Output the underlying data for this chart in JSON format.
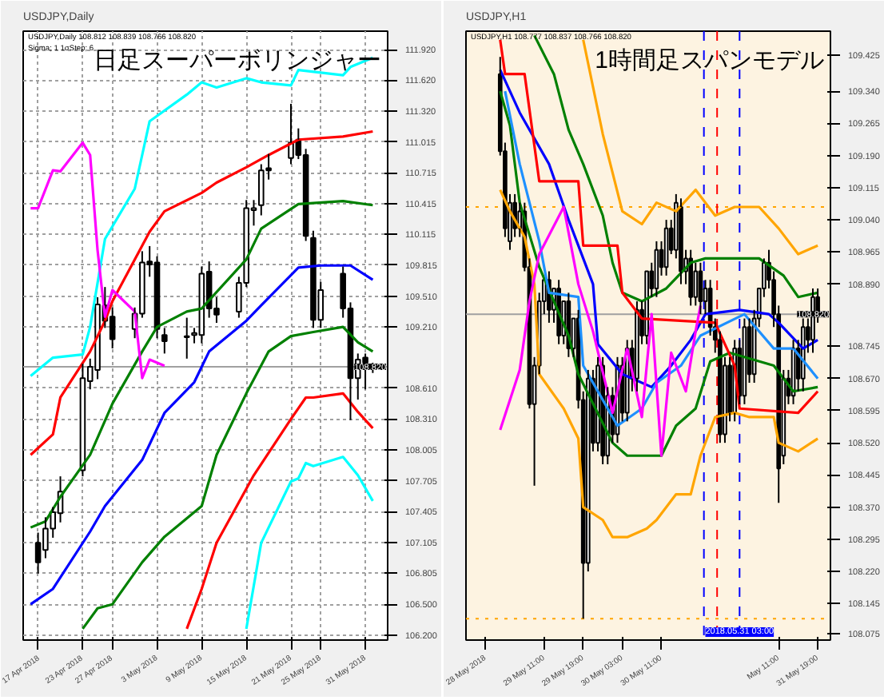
{
  "chart_data": [
    {
      "type": "candlestick",
      "title": "日足スーパーボリンジャー",
      "subtitle": "USDJPY,Daily 108.812 108.839 108.766 108.820",
      "annotations": [
        "USDJPY,Daily",
        "Sigma; 1 1σStep; 6"
      ],
      "x": [
        "2018-04-17",
        "2018-04-18",
        "2018-04-19",
        "2018-04-20",
        "2018-04-23",
        "2018-04-24",
        "2018-04-25",
        "2018-04-26",
        "2018-04-27",
        "2018-04-30",
        "2018-05-01",
        "2018-05-02",
        "2018-05-03",
        "2018-05-04",
        "2018-05-07",
        "2018-05-08",
        "2018-05-09",
        "2018-05-10",
        "2018-05-11",
        "2018-05-14",
        "2018-05-15",
        "2018-05-16",
        "2018-05-17",
        "2018-05-18",
        "2018-05-21",
        "2018-05-22",
        "2018-05-23",
        "2018-05-24",
        "2018-05-25",
        "2018-05-28",
        "2018-05-29",
        "2018-05-30",
        "2018-05-31",
        "2018-06-01"
      ],
      "ohlc": [
        [
          107.1,
          107.2,
          106.8,
          106.91
        ],
        [
          107.03,
          107.35,
          106.95,
          107.24
        ],
        [
          107.24,
          107.45,
          107.15,
          107.4
        ],
        [
          107.39,
          107.75,
          107.3,
          107.6
        ],
        [
          107.81,
          108.85,
          107.75,
          108.71
        ],
        [
          108.68,
          108.9,
          108.6,
          108.82
        ],
        [
          108.79,
          109.5,
          108.7,
          109.43
        ],
        [
          109.42,
          109.6,
          109.2,
          109.27
        ],
        [
          109.31,
          109.4,
          109.0,
          109.09
        ],
        [
          109.19,
          109.4,
          109.1,
          109.34
        ],
        [
          109.34,
          109.95,
          109.3,
          109.84
        ],
        [
          109.85,
          110.0,
          109.7,
          109.82
        ],
        [
          109.84,
          109.9,
          109.1,
          109.19
        ],
        [
          109.13,
          109.2,
          108.95,
          109.07
        ],
        [
          109.12,
          109.3,
          108.9,
          109.11
        ],
        [
          109.13,
          109.2,
          109.05,
          109.15
        ],
        [
          109.13,
          109.8,
          109.05,
          109.73
        ],
        [
          109.75,
          109.85,
          109.3,
          109.39
        ],
        [
          109.39,
          109.5,
          109.25,
          109.33
        ],
        [
          109.36,
          109.7,
          109.3,
          109.64
        ],
        [
          109.64,
          110.45,
          109.6,
          110.37
        ],
        [
          110.35,
          110.45,
          110.2,
          110.37
        ],
        [
          110.4,
          110.8,
          110.3,
          110.74
        ],
        [
          110.76,
          110.9,
          110.65,
          110.74
        ],
        [
          110.86,
          111.39,
          110.8,
          111.01
        ],
        [
          111.04,
          111.15,
          110.85,
          110.89
        ],
        [
          110.89,
          110.95,
          110.05,
          110.1
        ],
        [
          110.08,
          110.15,
          109.2,
          109.28
        ],
        [
          109.28,
          109.65,
          109.2,
          109.57
        ],
        [
          109.73,
          109.8,
          109.3,
          109.39
        ],
        [
          109.39,
          109.45,
          108.3,
          108.71
        ],
        [
          108.71,
          108.95,
          108.5,
          108.89
        ],
        [
          108.91,
          108.95,
          108.6,
          108.86
        ],
        [
          108.83,
          108.86,
          108.76,
          108.83
        ]
      ],
      "series": [
        {
          "type": "line",
          "color": "#00ffff",
          "x": [
            "2018-04-16",
            "2018-04-19",
            "2018-04-23",
            "2018-04-24",
            "2018-04-26",
            "2018-04-30",
            "2018-05-02",
            "2018-05-07",
            "2018-05-09",
            "2018-05-11",
            "2018-05-15",
            "2018-05-17",
            "2018-05-21",
            "2018-05-22",
            "2018-05-28",
            "2018-05-29",
            "2018-06-01"
          ],
          "values": [
            108.73,
            108.91,
            108.94,
            109.21,
            110.07,
            110.56,
            111.22,
            111.48,
            111.6,
            111.55,
            111.64,
            111.6,
            111.57,
            111.72,
            111.67,
            111.75,
            111.84
          ]
        },
        {
          "type": "line",
          "color": "#ff0000",
          "x": [
            "2018-04-16",
            "2018-04-19",
            "2018-04-20",
            "2018-04-24",
            "2018-04-26",
            "2018-04-27",
            "2018-05-02",
            "2018-05-04",
            "2018-05-09",
            "2018-05-11",
            "2018-05-15",
            "2018-05-18",
            "2018-05-22",
            "2018-05-28",
            "2018-06-01"
          ],
          "values": [
            107.96,
            108.16,
            108.52,
            108.97,
            109.27,
            109.46,
            110.14,
            110.34,
            110.52,
            110.62,
            110.77,
            110.89,
            111.04,
            111.07,
            111.12
          ]
        },
        {
          "type": "line",
          "color": "#008000",
          "x": [
            "2018-04-16",
            "2018-04-18",
            "2018-04-20",
            "2018-04-24",
            "2018-04-27",
            "2018-05-01",
            "2018-05-03",
            "2018-05-07",
            "2018-05-09",
            "2018-05-15",
            "2018-05-17",
            "2018-05-22",
            "2018-05-28",
            "2018-06-01"
          ],
          "values": [
            107.25,
            107.31,
            107.55,
            107.96,
            108.46,
            108.97,
            109.21,
            109.36,
            109.39,
            109.87,
            110.17,
            110.41,
            110.44,
            110.4
          ]
        },
        {
          "type": "line",
          "color": "#0000ff",
          "x": [
            "2018-04-16",
            "2018-04-19",
            "2018-04-24",
            "2018-04-26",
            "2018-05-01",
            "2018-05-04",
            "2018-05-08",
            "2018-05-10",
            "2018-05-15",
            "2018-05-17",
            "2018-05-22",
            "2018-05-25",
            "2018-05-29",
            "2018-06-01"
          ],
          "values": [
            106.5,
            106.65,
            107.21,
            107.46,
            107.91,
            108.37,
            108.67,
            108.97,
            109.27,
            109.42,
            109.79,
            109.81,
            109.81,
            109.67
          ]
        },
        {
          "type": "line",
          "color": "#008000",
          "x": [
            "2018-04-23",
            "2018-04-25",
            "2018-04-27",
            "2018-05-01",
            "2018-05-04",
            "2018-05-09",
            "2018-05-11",
            "2018-05-15",
            "2018-05-18",
            "2018-05-21",
            "2018-05-24",
            "2018-05-28",
            "2018-05-30",
            "2018-06-01"
          ],
          "values": [
            106.26,
            106.46,
            106.5,
            106.91,
            107.16,
            107.46,
            107.96,
            108.56,
            108.97,
            109.12,
            109.16,
            109.21,
            109.06,
            108.97
          ]
        },
        {
          "type": "line",
          "color": "#ff0000",
          "x": [
            "2018-05-07",
            "2018-05-09",
            "2018-05-11",
            "2018-05-16",
            "2018-05-21",
            "2018-05-23",
            "2018-05-24",
            "2018-05-28",
            "2018-05-30",
            "2018-06-01"
          ],
          "values": [
            106.26,
            106.65,
            107.1,
            107.76,
            108.31,
            108.52,
            108.52,
            108.56,
            108.38,
            108.22
          ]
        },
        {
          "type": "line",
          "color": "#00ffff",
          "x": [
            "2018-05-15",
            "2018-05-17",
            "2018-05-21",
            "2018-05-22",
            "2018-05-23",
            "2018-05-24",
            "2018-05-28",
            "2018-05-30",
            "2018-06-01"
          ],
          "values": [
            106.26,
            107.1,
            107.7,
            107.73,
            107.88,
            107.85,
            107.94,
            107.76,
            107.51
          ]
        },
        {
          "type": "line",
          "color": "#ff00ff",
          "x": [
            "2018-04-16",
            "2018-04-17",
            "2018-04-19",
            "2018-04-20",
            "2018-04-23",
            "2018-04-24",
            "2018-04-25",
            "2018-04-26",
            "2018-04-27",
            "2018-04-30",
            "2018-05-01",
            "2018-05-02",
            "2018-05-04"
          ],
          "values": [
            110.37,
            110.37,
            110.74,
            110.73,
            111.01,
            110.89,
            109.96,
            109.31,
            109.57,
            109.36,
            108.71,
            108.89,
            108.83
          ]
        }
      ],
      "xlim": [
        "2018-04-15",
        "2018-06-03"
      ],
      "ylim": [
        106.15,
        112.1
      ],
      "xticks": [
        {
          "value": "2018-04-17",
          "label": "17 Apr 2018"
        },
        {
          "value": "2018-04-23",
          "label": "23 Apr 2018"
        },
        {
          "value": "2018-04-27",
          "label": "27 Apr 2018"
        },
        {
          "value": "2018-05-03",
          "label": "3 May 2018"
        },
        {
          "value": "2018-05-09",
          "label": "9 May 2018"
        },
        {
          "value": "2018-05-15",
          "label": "15 May 2018"
        },
        {
          "value": "2018-05-21",
          "label": "21 May 2018"
        },
        {
          "value": "2018-05-25",
          "label": "25 May 2018"
        },
        {
          "value": "2018-05-31",
          "label": "31 May 2018"
        }
      ],
      "yticks": [
        {
          "value": 106.2,
          "label": "106.200"
        },
        {
          "value": 106.5,
          "label": "106.500"
        },
        {
          "value": 106.805,
          "label": "106.805"
        },
        {
          "value": 107.105,
          "label": "107.105"
        },
        {
          "value": 107.405,
          "label": "107.405"
        },
        {
          "value": 107.705,
          "label": "107.705"
        },
        {
          "value": 108.005,
          "label": "108.005"
        },
        {
          "value": 108.31,
          "label": "108.310"
        },
        {
          "value": 108.61,
          "label": "108.610"
        },
        {
          "value": 109.21,
          "label": "109.210"
        },
        {
          "value": 109.51,
          "label": "109.510"
        },
        {
          "value": 109.815,
          "label": "109.815"
        },
        {
          "value": 110.115,
          "label": "110.115"
        },
        {
          "value": 110.415,
          "label": "110.415"
        },
        {
          "value": 110.715,
          "label": "110.715"
        },
        {
          "value": 111.015,
          "label": "111.015"
        },
        {
          "value": 111.32,
          "label": "111.320"
        },
        {
          "value": 111.62,
          "label": "111.620"
        },
        {
          "value": 111.92,
          "label": "111.920"
        }
      ],
      "grid": true,
      "ref_lines": [
        {
          "axis": "y",
          "value": 108.82,
          "label": "108.820",
          "color": "#a0a0a0",
          "line_style": "solid"
        }
      ]
    },
    {
      "type": "candlestick",
      "title": "1時間足スパンモデル",
      "subtitle": "USDJPY,H1 108.777 108.837 108.766 108.820",
      "annotations": [
        "USDJPY,H1"
      ],
      "x": [
        "2018-05-29T02:00",
        "2018-05-29T03:00",
        "2018-05-29T04:00",
        "2018-05-29T05:00",
        "2018-05-29T06:00",
        "2018-05-29T07:00",
        "2018-05-29T08:00",
        "2018-05-29T09:00",
        "2018-05-29T10:00",
        "2018-05-29T11:00",
        "2018-05-29T12:00",
        "2018-05-29T13:00",
        "2018-05-29T14:00",
        "2018-05-29T15:00",
        "2018-05-29T16:00",
        "2018-05-29T17:00",
        "2018-05-29T18:00",
        "2018-05-29T19:00",
        "2018-05-29T20:00",
        "2018-05-29T21:00",
        "2018-05-29T22:00",
        "2018-05-29T23:00",
        "2018-05-30T00:00",
        "2018-05-30T01:00",
        "2018-05-30T02:00",
        "2018-05-30T03:00",
        "2018-05-30T04:00",
        "2018-05-30T05:00",
        "2018-05-30T06:00",
        "2018-05-30T07:00",
        "2018-05-30T08:00",
        "2018-05-30T09:00",
        "2018-05-30T10:00",
        "2018-05-30T11:00",
        "2018-05-30T12:00",
        "2018-05-30T13:00",
        "2018-05-30T14:00",
        "2018-05-30T15:00",
        "2018-05-30T16:00",
        "2018-05-30T17:00",
        "2018-05-30T18:00",
        "2018-05-30T19:00",
        "2018-05-30T20:00",
        "2018-05-30T21:00",
        "2018-05-30T22:00",
        "2018-05-30T23:00",
        "2018-05-31T00:00",
        "2018-05-31T01:00",
        "2018-05-31T02:00",
        "2018-05-31T03:00",
        "2018-05-31T04:00",
        "2018-05-31T05:00",
        "2018-05-31T06:00",
        "2018-05-31T07:00",
        "2018-05-31T08:00",
        "2018-05-31T09:00",
        "2018-05-31T10:00",
        "2018-05-31T11:00",
        "2018-05-31T12:00",
        "2018-05-31T13:00",
        "2018-05-31T14:00",
        "2018-05-31T15:00",
        "2018-05-31T16:00",
        "2018-05-31T17:00",
        "2018-05-31T18:00",
        "2018-05-31T19:00"
      ],
      "ohlc": [
        [
          109.38,
          109.42,
          109.19,
          109.2
        ],
        [
          109.2,
          109.22,
          109.0,
          109.02
        ],
        [
          108.99,
          109.1,
          108.97,
          109.08
        ],
        [
          109.08,
          109.1,
          109.0,
          109.02
        ],
        [
          109.02,
          109.08,
          109.0,
          109.06
        ],
        [
          109.06,
          109.08,
          108.92,
          108.93
        ],
        [
          108.93,
          108.95,
          108.6,
          108.61
        ],
        [
          108.61,
          108.72,
          108.42,
          108.7
        ],
        [
          108.7,
          108.87,
          108.68,
          108.85
        ],
        [
          108.85,
          108.9,
          108.82,
          108.9
        ],
        [
          108.9,
          108.92,
          108.8,
          108.83
        ],
        [
          108.83,
          108.88,
          108.8,
          108.88
        ],
        [
          108.88,
          108.9,
          108.75,
          108.77
        ],
        [
          108.77,
          108.85,
          108.75,
          108.85
        ],
        [
          108.85,
          108.87,
          108.72,
          108.74
        ],
        [
          108.74,
          108.81,
          108.72,
          108.81
        ],
        [
          108.81,
          108.83,
          108.6,
          108.62
        ],
        [
          108.62,
          108.64,
          108.11,
          108.24
        ],
        [
          108.24,
          108.69,
          108.22,
          108.67
        ],
        [
          108.67,
          108.69,
          108.5,
          108.52
        ],
        [
          108.52,
          108.72,
          108.5,
          108.7
        ],
        [
          108.7,
          108.72,
          108.47,
          108.49
        ],
        [
          108.49,
          108.65,
          108.47,
          108.63
        ],
        [
          108.63,
          108.65,
          108.52,
          108.54
        ],
        [
          108.54,
          108.72,
          108.52,
          108.7
        ],
        [
          108.7,
          108.72,
          108.57,
          108.59
        ],
        [
          108.59,
          108.76,
          108.57,
          108.74
        ],
        [
          108.74,
          108.76,
          108.64,
          108.67
        ],
        [
          108.67,
          108.85,
          108.64,
          108.83
        ],
        [
          108.83,
          108.85,
          108.75,
          108.77
        ],
        [
          108.77,
          108.92,
          108.75,
          108.92
        ],
        [
          108.92,
          108.94,
          108.86,
          108.88
        ],
        [
          108.88,
          108.99,
          108.86,
          108.97
        ],
        [
          108.97,
          108.99,
          108.91,
          108.93
        ],
        [
          108.93,
          109.04,
          108.91,
          109.02
        ],
        [
          109.02,
          109.04,
          108.96,
          108.97
        ],
        [
          108.97,
          109.1,
          108.95,
          109.08
        ],
        [
          109.07,
          109.09,
          108.89,
          108.92
        ],
        [
          108.92,
          108.97,
          108.89,
          108.95
        ],
        [
          108.95,
          108.97,
          108.84,
          108.86
        ],
        [
          108.86,
          108.94,
          108.84,
          108.92
        ],
        [
          108.92,
          108.94,
          108.82,
          108.85
        ],
        [
          108.85,
          108.9,
          108.82,
          108.88
        ],
        [
          108.88,
          108.9,
          108.77,
          108.79
        ],
        [
          108.79,
          108.81,
          108.73,
          108.76
        ],
        [
          108.76,
          108.78,
          108.52,
          108.54
        ],
        [
          108.54,
          108.72,
          108.52,
          108.7
        ],
        [
          108.7,
          108.72,
          108.57,
          108.59
        ],
        [
          108.59,
          108.76,
          108.57,
          108.74
        ],
        [
          108.74,
          108.76,
          108.61,
          108.63
        ],
        [
          108.63,
          108.81,
          108.61,
          108.79
        ],
        [
          108.79,
          108.81,
          108.66,
          108.68
        ],
        [
          108.68,
          108.83,
          108.66,
          108.81
        ],
        [
          108.81,
          108.88,
          108.79,
          108.88
        ],
        [
          108.88,
          108.95,
          108.86,
          108.94
        ],
        [
          108.94,
          108.97,
          108.88,
          108.9
        ],
        [
          108.9,
          108.92,
          108.79,
          108.82
        ],
        [
          108.82,
          108.84,
          108.38,
          108.46
        ],
        [
          108.49,
          108.69,
          108.47,
          108.67
        ],
        [
          108.67,
          108.69,
          108.61,
          108.63
        ],
        [
          108.63,
          108.76,
          108.61,
          108.74
        ],
        [
          108.74,
          108.76,
          108.64,
          108.67
        ],
        [
          108.67,
          108.81,
          108.64,
          108.79
        ],
        [
          108.79,
          108.81,
          108.73,
          108.76
        ],
        [
          108.76,
          108.88,
          108.73,
          108.86
        ],
        [
          108.86,
          108.88,
          108.8,
          108.82
        ]
      ],
      "series": [
        {
          "type": "line",
          "color": "#ffa500",
          "x": [
            "2018-05-29T19:00",
            "2018-05-29T23:00",
            "2018-05-30T03:00",
            "2018-05-30T07:00",
            "2018-05-30T10:00",
            "2018-05-30T14:00",
            "2018-05-30T18:00",
            "2018-05-30T22:00",
            "2018-05-31T02:00",
            "2018-05-31T07:00",
            "2018-05-31T11:00",
            "2018-05-31T15:00",
            "2018-05-31T19:00"
          ],
          "values": [
            109.46,
            109.24,
            109.06,
            109.03,
            109.08,
            109.06,
            109.11,
            109.05,
            109.07,
            109.07,
            109.02,
            108.96,
            108.98
          ]
        },
        {
          "type": "line",
          "color": "#ffa500",
          "x": [
            "2018-05-29T02:00",
            "2018-05-29T04:00",
            "2018-05-29T07:00",
            "2018-05-29T09:00",
            "2018-05-29T10:00",
            "2018-05-29T15:00",
            "2018-05-29T18:00",
            "2018-05-29T19:00",
            "2018-05-29T23:00",
            "2018-05-30T01:00",
            "2018-05-30T04:00",
            "2018-05-30T08:00",
            "2018-05-30T10:00",
            "2018-05-30T14:00",
            "2018-05-30T17:00",
            "2018-05-30T19:00",
            "2018-05-30T22:00",
            "2018-05-31T02:00",
            "2018-05-31T05:00",
            "2018-05-31T10:00",
            "2018-05-31T11:00",
            "2018-05-31T15:00",
            "2018-05-31T19:00"
          ],
          "values": [
            109.11,
            109.06,
            109.0,
            108.89,
            108.68,
            108.6,
            108.53,
            108.37,
            108.34,
            108.3,
            108.3,
            108.32,
            108.34,
            108.4,
            108.4,
            108.49,
            108.58,
            108.59,
            108.58,
            108.58,
            108.52,
            108.5,
            108.53
          ]
        },
        {
          "type": "line",
          "color": "#008000",
          "x": [
            "2018-05-29T09:00",
            "2018-05-29T13:00",
            "2018-05-29T16:00",
            "2018-05-29T19:00",
            "2018-05-29T23:00",
            "2018-05-30T01:00",
            "2018-05-30T03:00",
            "2018-05-30T07:00",
            "2018-05-30T12:00",
            "2018-05-30T17:00",
            "2018-05-30T20:00",
            "2018-05-31T02:00",
            "2018-05-31T07:00",
            "2018-05-31T12:00",
            "2018-05-31T15:00",
            "2018-05-31T19:00"
          ],
          "values": [
            109.47,
            109.38,
            109.25,
            109.17,
            109.05,
            108.94,
            108.87,
            108.85,
            108.88,
            108.94,
            108.95,
            108.95,
            108.95,
            108.91,
            108.86,
            108.87
          ]
        },
        {
          "type": "line",
          "color": "#008000",
          "x": [
            "2018-05-29T02:00",
            "2018-05-29T04:00",
            "2018-05-29T06:00",
            "2018-05-29T10:00",
            "2018-05-29T16:00",
            "2018-05-29T18:00",
            "2018-05-30T01:00",
            "2018-05-30T04:00",
            "2018-05-30T11:00",
            "2018-05-30T14:00",
            "2018-05-30T18:00",
            "2018-05-30T21:00",
            "2018-05-31T01:00",
            "2018-05-31T10:00",
            "2018-05-31T14:00",
            "2018-05-31T19:00"
          ],
          "values": [
            109.34,
            109.26,
            109.08,
            108.93,
            108.77,
            108.68,
            108.52,
            108.49,
            108.49,
            108.56,
            108.6,
            108.71,
            108.73,
            108.7,
            108.64,
            108.65
          ]
        },
        {
          "type": "line",
          "color": "#0000ff",
          "x": [
            "2018-05-29T02:00",
            "2018-05-29T06:00",
            "2018-05-29T12:00",
            "2018-05-29T16:00",
            "2018-05-29T21:00",
            "2018-05-29T22:00",
            "2018-05-30T03:00",
            "2018-05-30T09:00",
            "2018-05-30T13:00",
            "2018-05-30T17:00",
            "2018-05-30T20:00",
            "2018-05-31T03:00",
            "2018-05-31T09:00",
            "2018-05-31T11:00",
            "2018-05-31T16:00",
            "2018-05-31T19:00"
          ],
          "values": [
            109.39,
            109.29,
            109.17,
            109.04,
            108.89,
            108.75,
            108.68,
            108.65,
            108.7,
            108.76,
            108.82,
            108.83,
            108.82,
            108.8,
            108.74,
            108.76
          ]
        },
        {
          "type": "line",
          "color": "#1e90ff",
          "x": [
            "2018-05-29T03:00",
            "2018-05-29T06:00",
            "2018-05-29T10:00",
            "2018-05-29T12:00",
            "2018-05-29T18:00",
            "2018-05-29T19:00",
            "2018-05-30T02:00",
            "2018-05-30T07:00",
            "2018-05-30T10:00",
            "2018-05-30T15:00",
            "2018-05-30T19:00",
            "2018-05-31T04:00",
            "2018-05-31T10:00",
            "2018-05-31T14:00",
            "2018-05-31T19:00"
          ],
          "values": [
            109.34,
            109.17,
            108.99,
            108.87,
            108.86,
            108.7,
            108.56,
            108.6,
            108.66,
            108.7,
            108.77,
            108.82,
            108.74,
            108.74,
            108.67
          ]
        },
        {
          "type": "line",
          "color": "#ff0000",
          "x": [
            "2018-05-29T02:00",
            "2018-05-29T03:00",
            "2018-05-29T07:00",
            "2018-05-29T10:00",
            "2018-05-29T18:00",
            "2018-05-29T19:00",
            "2018-05-30T02:00",
            "2018-05-30T03:00",
            "2018-05-30T07:00",
            "2018-05-30T22:00",
            "2018-05-31T02:00",
            "2018-05-31T03:00",
            "2018-05-31T15:00",
            "2018-05-31T19:00"
          ],
          "values": [
            109.46,
            109.38,
            109.38,
            109.13,
            109.13,
            108.98,
            108.98,
            108.87,
            108.81,
            108.8,
            108.7,
            108.6,
            108.59,
            108.64
          ]
        },
        {
          "type": "line",
          "color": "#ff00ff",
          "x": [
            "2018-05-29T02:00",
            "2018-05-29T06:00",
            "2018-05-29T08:00",
            "2018-05-29T10:00",
            "2018-05-29T15:00",
            "2018-05-29T18:00",
            "2018-05-29T21:00",
            "2018-05-30T01:00",
            "2018-05-30T04:00",
            "2018-05-30T07:00",
            "2018-05-30T09:00",
            "2018-05-30T11:00",
            "2018-05-30T13:00",
            "2018-05-30T16:00",
            "2018-05-30T18:00",
            "2018-05-30T19:00"
          ],
          "values": [
            108.55,
            108.69,
            108.85,
            108.96,
            109.07,
            108.89,
            108.78,
            108.59,
            108.74,
            108.58,
            108.82,
            108.49,
            108.73,
            108.64,
            108.78,
            108.84
          ]
        }
      ],
      "xlim": [
        "2018-05-28T19:00",
        "2018-05-31T21:36"
      ],
      "ylim": [
        108.06,
        109.48
      ],
      "xticks": [
        {
          "value": "2018-05-28T23:00",
          "label": "28 May 2018"
        },
        {
          "value": "2018-05-29T11:00",
          "label": "29 May 11:00"
        },
        {
          "value": "2018-05-29T19:00",
          "label": "29 May 19:00"
        },
        {
          "value": "2018-05-30T03:00",
          "label": "30 May 03:00"
        },
        {
          "value": "2018-05-30T11:00",
          "label": "30 May 11:00"
        },
        {
          "value": "2018-05-31T11:00",
          "label": "May 11:00"
        },
        {
          "value": "2018-05-31T19:00",
          "label": "31 May 19:00"
        }
      ],
      "yticks": [
        {
          "value": 108.075,
          "label": "108.075"
        },
        {
          "value": 108.145,
          "label": "108.145"
        },
        {
          "value": 108.22,
          "label": "108.220"
        },
        {
          "value": 108.295,
          "label": "108.295"
        },
        {
          "value": 108.37,
          "label": "108.370"
        },
        {
          "value": 108.445,
          "label": "108.445"
        },
        {
          "value": 108.52,
          "label": "108.520"
        },
        {
          "value": 108.595,
          "label": "108.595"
        },
        {
          "value": 108.67,
          "label": "108.670"
        },
        {
          "value": 108.745,
          "label": "108.745"
        },
        {
          "value": 108.89,
          "label": "108.890"
        },
        {
          "value": 108.965,
          "label": "108.965"
        },
        {
          "value": 109.04,
          "label": "109.040"
        },
        {
          "value": 109.115,
          "label": "109.115"
        },
        {
          "value": 109.19,
          "label": "109.190"
        },
        {
          "value": 109.265,
          "label": "109.265"
        },
        {
          "value": 109.34,
          "label": "109.340"
        },
        {
          "value": 109.425,
          "label": "109.425"
        }
      ],
      "ref_lines": [
        {
          "axis": "y",
          "value": 108.82,
          "label": "108.820",
          "color": "#a0a0a0",
          "line_style": "solid"
        },
        {
          "axis": "y",
          "value": 109.07,
          "color": "#ffa500",
          "line_style": "dotted"
        },
        {
          "axis": "y",
          "value": 108.11,
          "color": "#ffa500",
          "line_style": "dotted"
        },
        {
          "axis": "x",
          "value": "2018-05-30T19:42",
          "color": "#0000ff",
          "line_style": "dashed"
        },
        {
          "axis": "x",
          "value": "2018-05-30T22:24",
          "color": "#ff0000",
          "line_style": "dashed"
        },
        {
          "axis": "x",
          "value": "2018-05-31T03:00",
          "label": "2018.05.31 03:00",
          "color": "#0000ff",
          "line_style": "dashed"
        }
      ]
    }
  ]
}
